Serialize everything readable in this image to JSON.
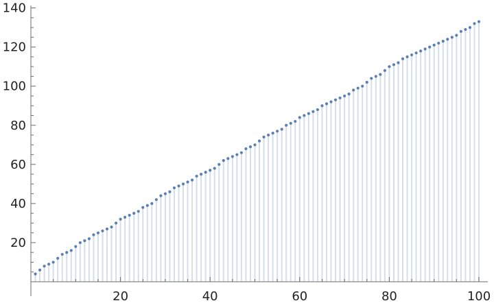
{
  "chart_data": {
    "type": "scatter",
    "style": "discrete-plot-with-fill-to-axis",
    "title": "",
    "xlabel": "",
    "ylabel": "",
    "xlim": [
      0,
      102
    ],
    "ylim": [
      0,
      140
    ],
    "x_ticks": [
      20,
      40,
      60,
      80,
      100
    ],
    "y_ticks": [
      20,
      40,
      60,
      80,
      100,
      120,
      140
    ],
    "x_tick_labels": [
      "20",
      "40",
      "60",
      "80",
      "100"
    ],
    "y_tick_labels": [
      "20",
      "40",
      "60",
      "80",
      "100",
      "120",
      "140"
    ],
    "grid": false,
    "legend": "none",
    "colors": {
      "point": "#5B7FB5",
      "stem": "#D5DFEA",
      "axis": "#6b6b6b",
      "text": "#222222"
    },
    "x": [
      1,
      2,
      3,
      4,
      5,
      6,
      7,
      8,
      9,
      10,
      11,
      12,
      13,
      14,
      15,
      16,
      17,
      18,
      19,
      20,
      21,
      22,
      23,
      24,
      25,
      26,
      27,
      28,
      29,
      30,
      31,
      32,
      33,
      34,
      35,
      36,
      37,
      38,
      39,
      40,
      41,
      42,
      43,
      44,
      45,
      46,
      47,
      48,
      49,
      50,
      51,
      52,
      53,
      54,
      55,
      56,
      57,
      58,
      59,
      60,
      61,
      62,
      63,
      64,
      65,
      66,
      67,
      68,
      69,
      70,
      71,
      72,
      73,
      74,
      75,
      76,
      77,
      78,
      79,
      80,
      81,
      82,
      83,
      84,
      85,
      86,
      87,
      88,
      89,
      90,
      91,
      92,
      93,
      94,
      95,
      96,
      97,
      98,
      99,
      100
    ],
    "y": [
      4,
      6,
      8,
      9,
      10,
      12,
      14,
      15,
      16,
      18,
      20,
      21,
      22,
      24,
      25,
      26,
      27,
      28,
      30,
      32,
      33,
      34,
      35,
      36,
      38,
      39,
      40,
      42,
      44,
      45,
      46,
      48,
      49,
      50,
      51,
      52,
      54,
      55,
      56,
      57,
      58,
      60,
      62,
      63,
      64,
      65,
      66,
      68,
      69,
      70,
      72,
      74,
      75,
      76,
      77,
      78,
      80,
      81,
      82,
      84,
      85,
      86,
      87,
      88,
      90,
      91,
      92,
      93,
      94,
      95,
      96,
      98,
      99,
      100,
      102,
      104,
      105,
      106,
      108,
      110,
      111,
      112,
      114,
      115,
      116,
      117,
      118,
      119,
      120,
      121,
      122,
      123,
      124,
      125,
      126,
      128,
      129,
      130,
      132,
      133
    ]
  }
}
